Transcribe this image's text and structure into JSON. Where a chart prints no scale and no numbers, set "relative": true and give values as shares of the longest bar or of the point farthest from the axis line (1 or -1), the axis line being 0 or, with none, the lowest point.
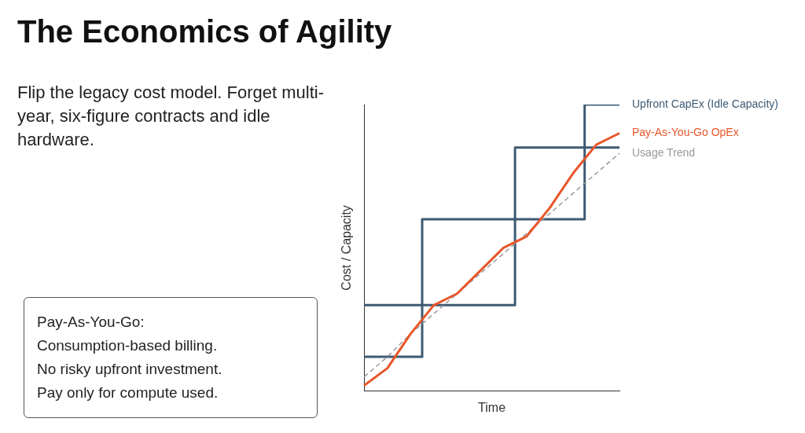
{
  "chart_data": {
    "type": "step",
    "relative": true,
    "title": "The Economics of Agility",
    "subtitle": "Flip the legacy cost model. Forget multi-year, six-figure contracts and idle hardware.",
    "annotations": [
      "Pay-As-You-Go:",
      "Consumption-based billing.",
      "No risky upfront investment.",
      "Pay only for compute used."
    ],
    "xlabel": "Time",
    "ylabel": "Cost / Capacity",
    "legend": false,
    "grid": false,
    "categories": [
      null,
      null,
      null,
      null,
      null,
      null,
      null,
      null,
      null,
      null,
      null,
      null
    ],
    "series": [
      {
        "name": "Upfront CapEx (Idle Capacity)",
        "color": "#3d5a73",
        "values": [
          0.3,
          0.3,
          0.3,
          0.6,
          0.6,
          0.6,
          0.6,
          0.85,
          0.85,
          0.85,
          1,
          1
        ]
      },
      {
        "color": "#3d5a73",
        "values": [
          0.12,
          0.12,
          0.12,
          0.3,
          0.3,
          0.3,
          0.3,
          0.6,
          0.6,
          0.6,
          0.85,
          0.85
        ]
      },
      {
        "name": "Pay-As-You-Go OpEx",
        "type": "line",
        "color": "#e8562a",
        "values": [
          0.02,
          0.08,
          0.2,
          0.3,
          0.34,
          0.42,
          0.5,
          0.54,
          0.64,
          0.76,
          0.86,
          0.9
        ]
      },
      {
        "name": "Usage Trend",
        "type": "line",
        "line_style": "dashed",
        "color": "#999999",
        "values": [
          0.05,
          0.12,
          0.2,
          0.27,
          0.34,
          0.41,
          0.48,
          0.55,
          0.62,
          0.69,
          0.76,
          0.83
        ]
      }
    ]
  }
}
